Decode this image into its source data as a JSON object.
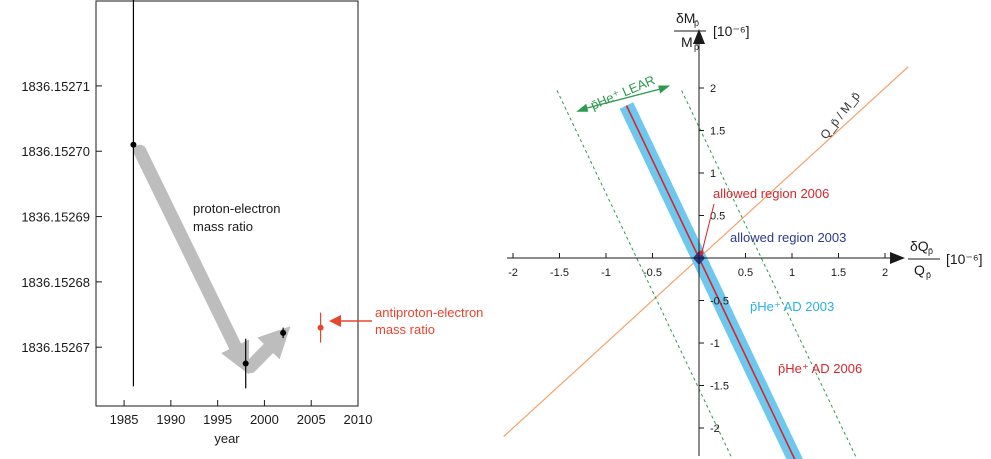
{
  "chart_data": [
    {
      "type": "scatter",
      "xlabel": "year",
      "ylabel": "",
      "xlim": [
        1982,
        2010
      ],
      "ylim": [
        1836.152661,
        1836.152723
      ],
      "x_ticks": [
        1985,
        1990,
        1995,
        2000,
        2005,
        2010
      ],
      "y_ticks": [
        "1836.15267",
        "1836.15268",
        "1836.15269",
        "1836.15270",
        "1836.15271"
      ],
      "series": [
        {
          "name": "proton-electron mass ratio",
          "color": "#000000",
          "points": [
            {
              "x": 1986,
              "y": 1836.152701,
              "err": 3.7e-05
            },
            {
              "x": 1998,
              "y": 1836.1526675,
              "err": 3.8e-06
            },
            {
              "x": 2002,
              "y": 1836.1526722,
              "err": 8e-07
            }
          ]
        },
        {
          "name": "antiproton-electron mass ratio",
          "color": "#e8452e",
          "points": [
            {
              "x": 2006,
              "y": 1836.152673,
              "err": 2.3e-06
            }
          ]
        }
      ],
      "annotations": [
        {
          "text_lines": [
            "proton-electron",
            "mass ratio"
          ]
        },
        {
          "text_lines": [
            "antiproton-electron",
            "mass ratio"
          ],
          "color": "#e8452e"
        }
      ],
      "trend_arrows": [
        {
          "from": [
            1986.7,
            1836.1527
          ],
          "to": [
            1997.6,
            1836.152668
          ]
        },
        {
          "from": [
            1998.5,
            1836.152667
          ],
          "to": [
            2001.6,
            1836.1526715
          ]
        }
      ]
    },
    {
      "type": "line",
      "xlabel_top": "δQ",
      "xlabel_bottom": "Q",
      "x_units": "[10⁻⁶]",
      "ylabel_top": "δM",
      "ylabel_bottom": "M",
      "y_units": "[10⁻⁶]",
      "subscript": "p̄",
      "xlim": [
        -2.3,
        2.3
      ],
      "ylim": [
        -2.35,
        2.35
      ],
      "x_ticks": [
        "-2",
        "-1.5",
        "-1",
        "-0.5",
        "0.5",
        "1",
        "1.5",
        "2"
      ],
      "x_tick_values": [
        -2,
        -1.5,
        -1,
        -0.5,
        0.5,
        1,
        1.5,
        2
      ],
      "y_ticks": [
        "2",
        "1.5",
        "1",
        "0.5",
        "-0.5",
        "-1",
        "-1.5",
        "-2"
      ],
      "y_tick_values": [
        2,
        1.5,
        1,
        0.5,
        -0.5,
        -1,
        -1.5,
        -2
      ],
      "bands": [
        {
          "name": "p̄He⁺ AD 2003",
          "slope": -2.3,
          "half_width": 0.15,
          "x_range": [
            -0.78,
            1.12
          ],
          "color": "#6ec8ee"
        },
        {
          "name": "p̄He⁺ AD 2006",
          "slope": -2.3,
          "x_range": [
            -0.78,
            1.12
          ],
          "color": "#d6262c"
        },
        {
          "name": "p̄He⁺ LEAR",
          "slope": -2.3,
          "half_width": 0.67,
          "style": "dashed",
          "color": "#2e9a4e"
        },
        {
          "name": "Q_p̄ / M_p̄",
          "slope": 1.0,
          "x_range": [
            -2.1,
            2.25
          ],
          "color": "#f2a36a"
        }
      ],
      "labels": [
        {
          "text": "allowed region 2006",
          "color": "#d6262c"
        },
        {
          "text": "allowed region 2003",
          "color": "#2a3a8c"
        },
        {
          "text": "p̄He⁺ AD 2003",
          "color": "#29b0e5"
        },
        {
          "text": "p̄He⁺ AD 2006",
          "color": "#d6262c"
        },
        {
          "text": "p̄He⁺ LEAR",
          "color": "#2e9a4e"
        },
        {
          "text": "Q_p̄ / M_p̄",
          "color": "#333333"
        }
      ]
    }
  ]
}
